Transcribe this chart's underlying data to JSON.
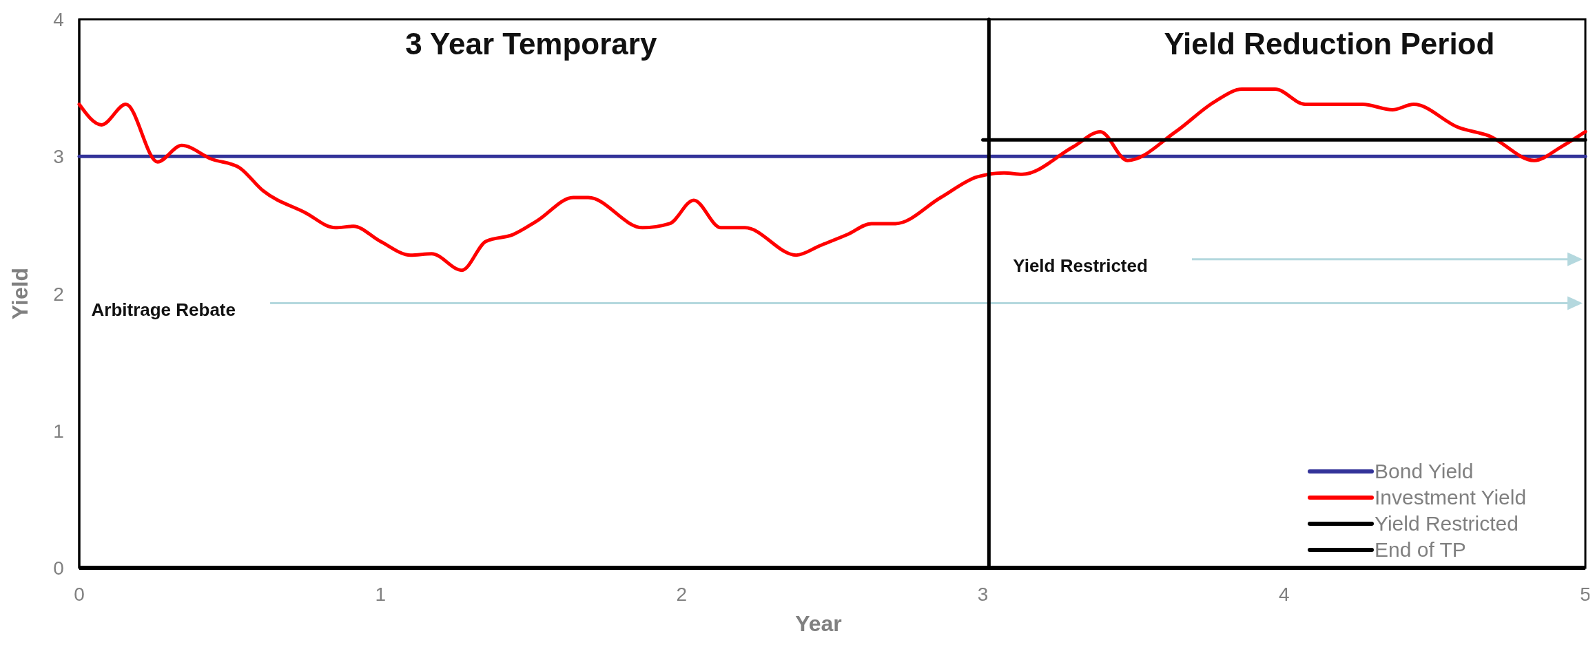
{
  "chart_data": {
    "type": "line",
    "xlabel": "Year",
    "ylabel": "Yield",
    "xlim": [
      0,
      5
    ],
    "ylim": [
      0,
      4
    ],
    "xticks": [
      0,
      1,
      2,
      3,
      4,
      5
    ],
    "yticks": [
      0,
      1,
      2,
      3,
      4
    ],
    "legend": "bottom right",
    "grid": false,
    "marker": "none",
    "line_style": "solid",
    "series": [
      {
        "name": "Bond Yield",
        "color": "#333399",
        "x": [
          0,
          5
        ],
        "values": [
          3,
          3
        ]
      },
      {
        "name": "Investment Yield",
        "color": "#ff0000",
        "x": [
          0,
          0.074,
          0.155,
          0.26,
          0.34,
          0.44,
          0.53,
          0.61,
          0.75,
          0.85,
          0.91,
          1.0,
          1.1,
          1.17,
          1.27,
          1.35,
          1.44,
          1.52,
          1.64,
          1.69,
          1.87,
          1.96,
          2.04,
          2.13,
          2.21,
          2.38,
          2.46,
          2.55,
          2.63,
          2.71,
          2.86,
          2.98,
          3.07,
          3.13,
          3.3,
          3.39,
          3.48,
          3.64,
          3.77,
          3.86,
          3.97,
          4.07,
          4.26,
          4.36,
          4.43,
          4.58,
          4.68,
          4.83,
          4.92,
          5.0
        ],
        "values": [
          3.38,
          3.23,
          3.38,
          2.96,
          3.08,
          2.98,
          2.92,
          2.75,
          2.59,
          2.48,
          2.49,
          2.38,
          2.28,
          2.29,
          2.17,
          2.38,
          2.43,
          2.53,
          2.7,
          2.7,
          2.48,
          2.51,
          2.68,
          2.48,
          2.48,
          2.28,
          2.35,
          2.43,
          2.51,
          2.51,
          2.7,
          2.85,
          2.88,
          2.87,
          3.07,
          3.18,
          2.97,
          3.18,
          3.4,
          3.49,
          3.49,
          3.38,
          3.38,
          3.34,
          3.38,
          3.21,
          3.15,
          2.97,
          3.07,
          3.18
        ]
      },
      {
        "name": "Yield Restricted",
        "color": "#000000",
        "x": [
          3,
          5
        ],
        "values": [
          3.12,
          3.12
        ]
      },
      {
        "name": "End of TP",
        "color": "#000000",
        "x": [
          3.02,
          3.02
        ],
        "values": [
          0,
          4
        ]
      }
    ],
    "annotations": [
      "3 Year Temporary",
      "Yield Reduction Period",
      "Yield Restricted",
      "Arbitrage Rebate"
    ]
  }
}
